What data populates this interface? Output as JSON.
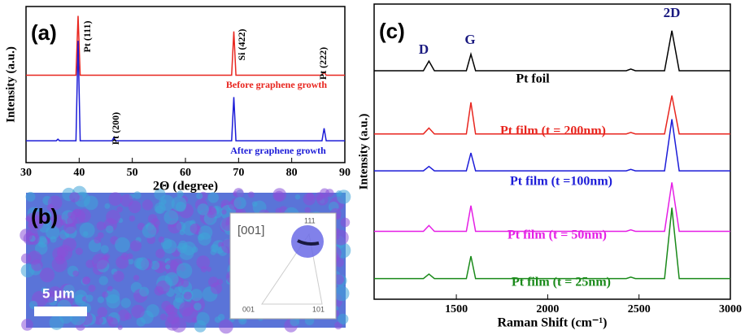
{
  "chart_data": [
    {
      "type": "line",
      "title": "(a)",
      "xlabel": "2Θ (degree)",
      "ylabel": "Intensity (a.u.)",
      "xlim": [
        30,
        90
      ],
      "xticks": [
        30,
        40,
        50,
        60,
        70,
        80,
        90
      ],
      "ylim": [
        0,
        100
      ],
      "annotations": [
        "Pt (111)",
        "Pt (200)",
        "Si (422)",
        "Pt (222)"
      ],
      "series": [
        {
          "name": "Before graphene growth",
          "color": "#e8261f",
          "x": [
            30,
            39.4,
            39.8,
            40.2,
            68.7,
            69.1,
            69.5,
            85.7,
            86.1,
            86.5,
            90
          ],
          "values": [
            56,
            56,
            94,
            56,
            56,
            84,
            56,
            56,
            58,
            56,
            56
          ]
        },
        {
          "name": "After graphene growth",
          "color": "#1c1cd8",
          "x": [
            30,
            35.7,
            36,
            36.3,
            39.4,
            39.8,
            40.2,
            46.2,
            46.5,
            46.8,
            68.7,
            69.1,
            69.5,
            85.7,
            86.1,
            86.5,
            90
          ],
          "values": [
            14,
            14,
            15,
            14,
            14,
            78,
            14,
            14,
            16,
            14,
            14,
            42,
            14,
            14,
            22,
            14,
            14
          ]
        }
      ]
    },
    {
      "type": "line",
      "title": "(c)",
      "xlabel": "Raman Shift (cm⁻¹)",
      "ylabel": "Intensity (a.u.)",
      "xlim": [
        1050,
        3000
      ],
      "xticks": [
        1500,
        2000,
        2500,
        3000
      ],
      "ylim": [
        0,
        100
      ],
      "annotations": [
        "D",
        "G",
        "2D"
      ],
      "x": [
        1050,
        1320,
        1350,
        1380,
        1555,
        1580,
        1605,
        2430,
        2455,
        2480,
        2640,
        2680,
        2720,
        3000
      ],
      "series": [
        {
          "name": "Pt foil",
          "color": "#000000",
          "values": [
            77.4,
            77.4,
            80.7,
            77.4,
            77.4,
            83,
            77.4,
            77.4,
            78,
            77.4,
            77.4,
            91,
            77.4,
            77.4
          ]
        },
        {
          "name": "Pt film (t = 200nm)",
          "color": "#e8261f",
          "values": [
            56,
            56,
            58,
            56,
            56,
            66.7,
            56,
            56,
            56.5,
            56,
            56,
            69,
            56,
            56
          ]
        },
        {
          "name": "Pt film (t =100nm)",
          "color": "#1c1cd8",
          "values": [
            43.5,
            43.5,
            45,
            43.5,
            43.5,
            49.6,
            43.5,
            43.5,
            44,
            43.5,
            43.5,
            61,
            43.5,
            43.5
          ]
        },
        {
          "name": "Pt film (t = 50nm)",
          "color": "#e51ee5",
          "values": [
            23,
            23,
            25,
            23,
            23,
            31.7,
            23,
            23,
            23.5,
            23,
            23,
            39.6,
            23,
            23
          ]
        },
        {
          "name": "Pt film (t = 25nm)",
          "color": "#1a8a1a",
          "values": [
            7,
            7,
            8.5,
            7,
            7,
            14.6,
            7,
            7,
            7.5,
            7,
            7,
            31,
            7,
            7
          ]
        }
      ]
    }
  ],
  "image_panel": {
    "label": "(b)",
    "scale_bar": "5 μm",
    "inset": {
      "direction": "[001]",
      "corners": [
        "111",
        "001",
        "101"
      ]
    }
  }
}
